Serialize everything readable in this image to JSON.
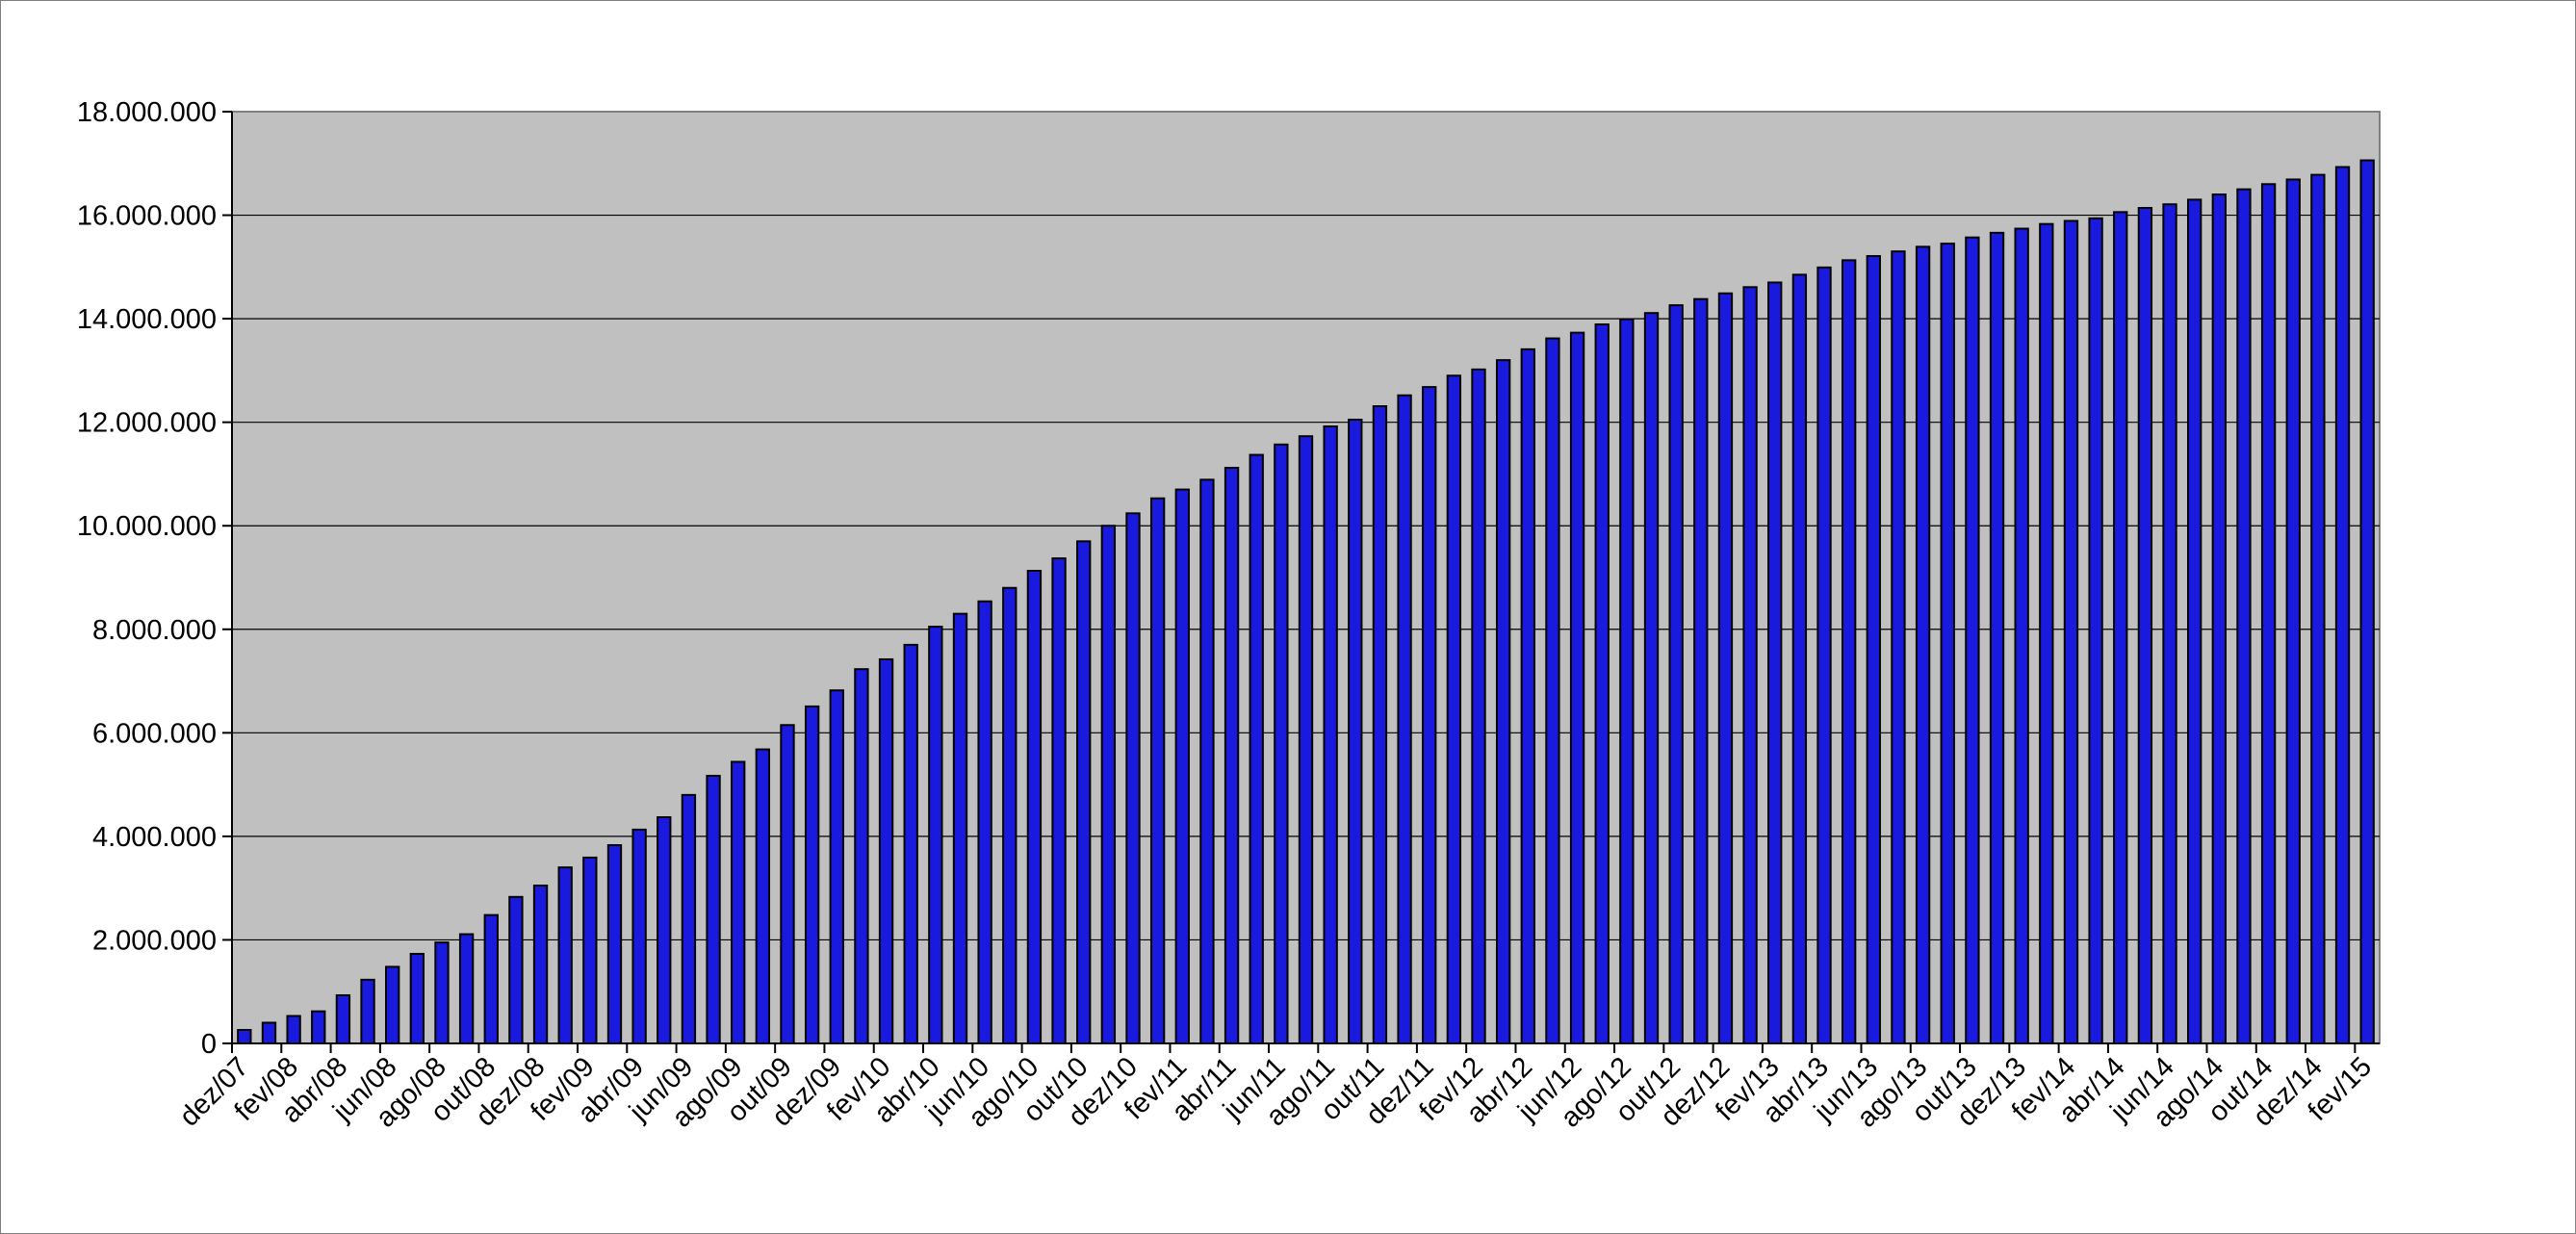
{
  "chart_data": {
    "type": "bar",
    "title": "",
    "xlabel": "",
    "ylabel": "",
    "ylim": [
      0,
      18000000
    ],
    "ytick_values": [
      0,
      2000000,
      4000000,
      6000000,
      8000000,
      10000000,
      12000000,
      14000000,
      16000000,
      18000000
    ],
    "ytick_labels": [
      "0",
      "2.000.000",
      "4.000.000",
      "6.000.000",
      "8.000.000",
      "10.000.000",
      "12.000.000",
      "14.000.000",
      "16.000.000",
      "18.000.000"
    ],
    "grid": true,
    "legend": "none",
    "colors": {
      "bar_fill": "#1a1adf",
      "bar_stroke": "#000000",
      "plot_background": "#c0c0c0",
      "gridline": "#000000"
    },
    "categories": [
      "dez/07",
      "jan/08",
      "fev/08",
      "mar/08",
      "abr/08",
      "mai/08",
      "jun/08",
      "jul/08",
      "ago/08",
      "set/08",
      "out/08",
      "nov/08",
      "dez/08",
      "jan/09",
      "fev/09",
      "mar/09",
      "abr/09",
      "mai/09",
      "jun/09",
      "jul/09",
      "ago/09",
      "set/09",
      "out/09",
      "nov/09",
      "dez/09",
      "jan/10",
      "fev/10",
      "mar/10",
      "abr/10",
      "mai/10",
      "jun/10",
      "jul/10",
      "ago/10",
      "set/10",
      "out/10",
      "nov/10",
      "dez/10",
      "jan/11",
      "fev/11",
      "mar/11",
      "abr/11",
      "mai/11",
      "jun/11",
      "jul/11",
      "ago/11",
      "set/11",
      "out/11",
      "nov/11",
      "dez/11",
      "jan/12",
      "fev/12",
      "mar/12",
      "abr/12",
      "mai/12",
      "jun/12",
      "jul/12",
      "ago/12",
      "set/12",
      "out/12",
      "nov/12",
      "dez/12",
      "jan/13",
      "fev/13",
      "mar/13",
      "abr/13",
      "mai/13",
      "jun/13",
      "jul/13",
      "ago/13",
      "set/13",
      "out/13",
      "nov/13",
      "dez/13",
      "jan/14",
      "fev/14",
      "mar/14",
      "abr/14",
      "mai/14",
      "jun/14",
      "jul/14",
      "ago/14",
      "set/14",
      "out/14",
      "nov/14",
      "dez/14",
      "jan/15",
      "fev/15"
    ],
    "xtick_labels": [
      "dez/07",
      "fev/08",
      "abr/08",
      "jun/08",
      "ago/08",
      "out/08",
      "dez/08",
      "fev/09",
      "abr/09",
      "jun/09",
      "ago/09",
      "out/09",
      "dez/09",
      "fev/10",
      "abr/10",
      "jun/10",
      "ago/10",
      "out/10",
      "dez/10",
      "fev/11",
      "abr/11",
      "jun/11",
      "ago/11",
      "out/11",
      "dez/11",
      "fev/12",
      "abr/12",
      "jun/12",
      "ago/12",
      "out/12",
      "dez/12",
      "fev/13",
      "abr/13",
      "jun/13",
      "ago/13",
      "out/13",
      "dez/13",
      "fev/14",
      "abr/14",
      "jun/14",
      "ago/14",
      "out/14",
      "dez/14",
      "fev/15"
    ],
    "values": [
      260000,
      400000,
      530000,
      620000,
      930000,
      1230000,
      1480000,
      1730000,
      1950000,
      2110000,
      2480000,
      2830000,
      3050000,
      3400000,
      3590000,
      3830000,
      4130000,
      4370000,
      4800000,
      5170000,
      5440000,
      5680000,
      6150000,
      6510000,
      6820000,
      7230000,
      7420000,
      7700000,
      8050000,
      8300000,
      8540000,
      8800000,
      9130000,
      9370000,
      9700000,
      10000000,
      10240000,
      10530000,
      10700000,
      10890000,
      11120000,
      11370000,
      11570000,
      11730000,
      11920000,
      12050000,
      12310000,
      12520000,
      12680000,
      12900000,
      13020000,
      13200000,
      13410000,
      13620000,
      13730000,
      13890000,
      13990000,
      14110000,
      14260000,
      14380000,
      14490000,
      14610000,
      14700000,
      14850000,
      14990000,
      15130000,
      15210000,
      15300000,
      15390000,
      15450000,
      15570000,
      15660000,
      15740000,
      15830000,
      15890000,
      15940000,
      16060000,
      16140000,
      16210000,
      16300000,
      16400000,
      16500000,
      16600000,
      16690000,
      16780000,
      16930000,
      17060000
    ]
  }
}
